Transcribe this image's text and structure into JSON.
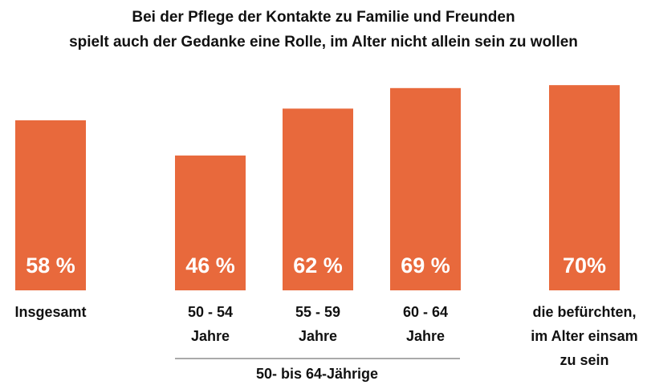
{
  "chart_data": {
    "type": "bar",
    "title": [
      "Bei der Pflege der Kontakte zu Familie und Freunden",
      "spielt auch der Gedanke eine Rolle, im Alter nicht allein sein zu wollen"
    ],
    "categories": [
      [
        "Insgesamt"
      ],
      [
        "50 - 54",
        "Jahre"
      ],
      [
        "55 - 59",
        "Jahre"
      ],
      [
        "60 - 64",
        "Jahre"
      ],
      [
        "die befürchten,",
        "im Alter einsam",
        "zu sein"
      ]
    ],
    "values": [
      58,
      46,
      62,
      69,
      70
    ],
    "value_labels": [
      "58 %",
      "46 %",
      "62 %",
      "69 %",
      "70%"
    ],
    "group_label": "50- bis 64-Jährige",
    "color": "#e8693c"
  }
}
